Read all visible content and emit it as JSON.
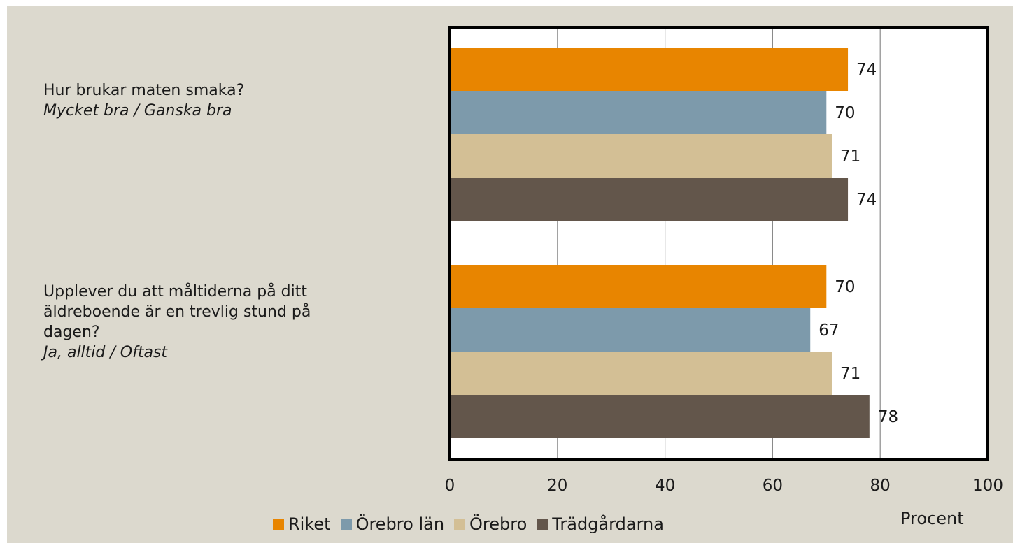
{
  "questions": [
    {
      "question": "Hur brukar maten smaka?",
      "answer": "Mycket bra / Ganska bra"
    },
    {
      "question_line1": "Upplever du att måltiderna på ditt",
      "question_line2": "äldreboende är en trevlig stund på",
      "question_line3": "dagen?",
      "answer": "Ja, alltid / Oftast"
    }
  ],
  "chart_data": {
    "type": "bar",
    "orientation": "horizontal",
    "categories": [
      "Hur brukar maten smaka? Mycket bra / Ganska bra",
      "Upplever du att måltiderna på ditt äldreboende är en trevlig stund på dagen? Ja, alltid / Oftast"
    ],
    "series": [
      {
        "name": "Riket",
        "values": [
          74,
          70
        ],
        "color": "#e88500"
      },
      {
        "name": "Örebro län",
        "values": [
          70,
          67
        ],
        "color": "#7d9aab"
      },
      {
        "name": "Örebro",
        "values": [
          71,
          71
        ],
        "color": "#d3bf95"
      },
      {
        "name": "Trädgårdarna",
        "values": [
          74,
          78
        ],
        "color": "#63564b"
      }
    ],
    "xlim": [
      0,
      100
    ],
    "xticks": [
      "0",
      "20",
      "40",
      "60",
      "80",
      "100"
    ],
    "xlabel": "Procent",
    "grid": true,
    "legend_position": "bottom",
    "data_labels": true
  }
}
